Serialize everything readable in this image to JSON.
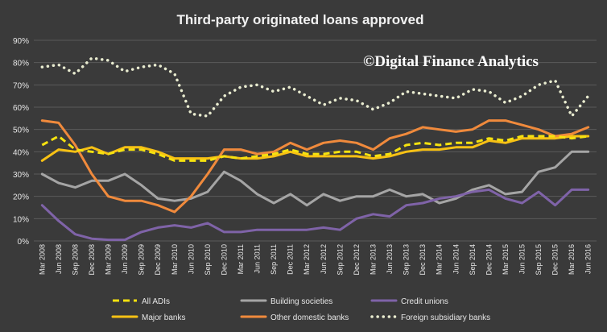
{
  "colors": {
    "background": "#3a3a3a",
    "grid": "#5b5b5b",
    "text": "#e6e6e6",
    "all_adis": "#f5e20f",
    "building_societies": "#a5a5a5",
    "credit_unions": "#7f63a8",
    "major_banks": "#f7c114",
    "other_domestic_banks": "#f08a3c",
    "foreign_subsidiary_banks": "#e9ecd0"
  },
  "watermark": "©Digital Finance Analytics",
  "chart_data": {
    "type": "line",
    "title": "Third-party originated loans approved",
    "xlabel": "",
    "ylabel": "",
    "ylim": [
      0,
      90
    ],
    "yticks": [
      "0%",
      "10%",
      "20%",
      "30%",
      "40%",
      "50%",
      "60%",
      "70%",
      "80%",
      "90%"
    ],
    "grid": true,
    "legend_position": "bottom",
    "categories": [
      "Mar 2008",
      "Jun 2008",
      "Sep 2008",
      "Dec 2008",
      "Mar 2009",
      "Jun 2009",
      "Sep 2009",
      "Dec 2009",
      "Mar 2010",
      "Jun 2010",
      "Sep 2010",
      "Dec 2010",
      "Mar 2011",
      "Jun 2011",
      "Sep 2011",
      "Dec 2011",
      "Mar 2012",
      "Jun 2012",
      "Sep 2012",
      "Dec 2012",
      "Mar 2013",
      "Jun 2013",
      "Sep 2013",
      "Dec 2013",
      "Mar 2014",
      "Jun 2014",
      "Sep 2014",
      "Dec 2014",
      "Mar 2015",
      "Jun 2015",
      "Sep 2015",
      "Dec 2015",
      "Mar 2016",
      "Jun 2016"
    ],
    "series": [
      {
        "name": "All ADIs",
        "style": "dashed",
        "color_key": "all_adis",
        "values": [
          43,
          47,
          41,
          40,
          39,
          41,
          41,
          39,
          36,
          36,
          36,
          38,
          37,
          38,
          39,
          41,
          39,
          39,
          40,
          40,
          38,
          39,
          43,
          44,
          43,
          44,
          44,
          46,
          45,
          47,
          47,
          47,
          46,
          47
        ]
      },
      {
        "name": "Building societies",
        "style": "solid",
        "color_key": "building_societies",
        "values": [
          30,
          26,
          24,
          27,
          27,
          30,
          25,
          19,
          18,
          19,
          22,
          31,
          27,
          21,
          17,
          21,
          16,
          21,
          18,
          20,
          20,
          23,
          20,
          21,
          17,
          19,
          23,
          25,
          21,
          22,
          31,
          33,
          40,
          40
        ]
      },
      {
        "name": "Credit unions",
        "style": "solid",
        "color_key": "credit_unions",
        "values": [
          16,
          9,
          3,
          1,
          0.5,
          0.5,
          4,
          6,
          7,
          6,
          8,
          4,
          4,
          5,
          5,
          5,
          5,
          6,
          5,
          10,
          12,
          11,
          16,
          17,
          19,
          20,
          22,
          23,
          19,
          17,
          22,
          16,
          23,
          23
        ]
      },
      {
        "name": "Major banks",
        "style": "solid",
        "color_key": "major_banks",
        "values": [
          36,
          41,
          40,
          42,
          39,
          42,
          42,
          40,
          37,
          37,
          37,
          38,
          37,
          37,
          38,
          40,
          38,
          38,
          38,
          38,
          37,
          38,
          40,
          41,
          41,
          42,
          42,
          45,
          44,
          46,
          46,
          46,
          47,
          47
        ]
      },
      {
        "name": "Other domestic banks",
        "style": "solid",
        "color_key": "other_domestic_banks",
        "values": [
          54,
          53,
          43,
          30,
          20,
          18,
          18,
          16,
          13,
          20,
          30,
          41,
          41,
          39,
          40,
          44,
          41,
          44,
          45,
          44,
          41,
          46,
          48,
          51,
          50,
          49,
          50,
          54,
          54,
          52,
          50,
          47,
          48,
          51
        ]
      },
      {
        "name": "Foreign subsidiary banks",
        "style": "dotted",
        "color_key": "foreign_subsidiary_banks",
        "values": [
          78,
          79,
          75,
          82,
          81,
          76,
          78,
          79,
          75,
          57,
          56,
          65,
          69,
          70,
          67,
          69,
          65,
          61,
          64,
          63,
          59,
          62,
          67,
          66,
          65,
          64,
          68,
          67,
          62,
          65,
          70,
          72,
          56,
          65
        ]
      }
    ]
  }
}
